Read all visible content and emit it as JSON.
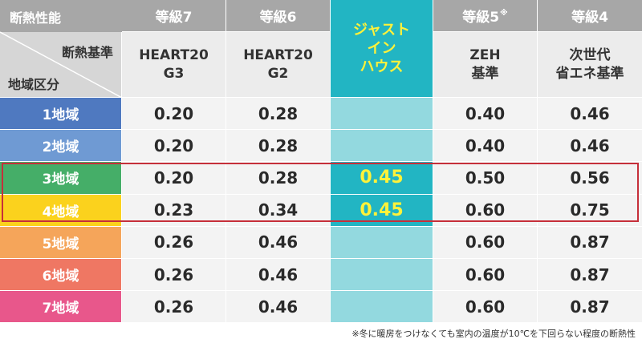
{
  "header": {
    "corner_top": "断熱性能",
    "corner_right": "断熱基準",
    "corner_bottom": "地域区分",
    "columns": [
      {
        "grade": "等級7",
        "grade_note": "",
        "standard_line1": "HEART20",
        "standard_line2": "G3"
      },
      {
        "grade": "等級6",
        "grade_note": "",
        "standard_line1": "HEART20",
        "standard_line2": "G2"
      },
      {
        "highlight_line1": "ジャスト",
        "highlight_line2": "イン",
        "highlight_line3": "ハウス"
      },
      {
        "grade": "等級5",
        "grade_note": "※",
        "standard_line1": "ZEH",
        "standard_line2": "基準"
      },
      {
        "grade": "等級4",
        "grade_note": "",
        "standard_line1": "次世代",
        "standard_line2": "省エネ基準"
      }
    ]
  },
  "rows": [
    {
      "region": "1地域",
      "color": "#4f79c0",
      "g7": "0.20",
      "g6": "0.28",
      "just": "",
      "g5": "0.40",
      "g4": "0.46"
    },
    {
      "region": "2地域",
      "color": "#6f9ad3",
      "g7": "0.20",
      "g6": "0.28",
      "just": "",
      "g5": "0.40",
      "g4": "0.46"
    },
    {
      "region": "3地域",
      "color": "#45ae68",
      "g7": "0.20",
      "g6": "0.28",
      "just": "0.45",
      "g5": "0.50",
      "g4": "0.56"
    },
    {
      "region": "4地域",
      "color": "#fbd21d",
      "g7": "0.23",
      "g6": "0.34",
      "just": "0.45",
      "g5": "0.60",
      "g4": "0.75"
    },
    {
      "region": "5地域",
      "color": "#f5a55a",
      "g7": "0.26",
      "g6": "0.46",
      "just": "",
      "g5": "0.60",
      "g4": "0.87"
    },
    {
      "region": "6地域",
      "color": "#ef7763",
      "g7": "0.26",
      "g6": "0.46",
      "just": "",
      "g5": "0.60",
      "g4": "0.87"
    },
    {
      "region": "7地域",
      "color": "#e8578b",
      "g7": "0.26",
      "g6": "0.46",
      "just": "",
      "g5": "0.60",
      "g4": "0.87"
    }
  ],
  "colors": {
    "header_bg": "#a7a7a7",
    "highlight_col": "#22b5c3",
    "highlight_text": "#fff23a",
    "highlight_border": "#c62f3a"
  },
  "footnote": "※冬に暖房をつけなくても室内の温度が10℃を下回らない程度の断熱性"
}
